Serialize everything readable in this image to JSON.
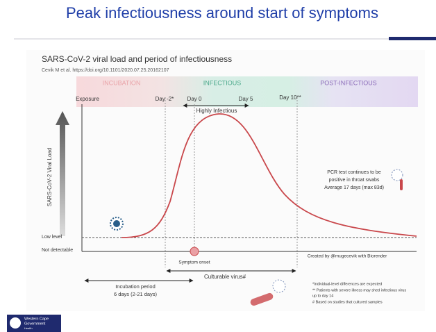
{
  "slide": {
    "title": "Peak infectiousness around start of symptoms"
  },
  "figure": {
    "title": "SARS-CoV-2 viral load and period of infectiousness",
    "citation": "Cevik M et al. https://doi.org/10.1101/2020.07.25.20162107",
    "phases": [
      "INCUBATION",
      "INFECTIOUS",
      "POST-INFECTIOUS"
    ],
    "timeline": [
      "Exposure",
      "Day -2*",
      "Day 0",
      "Day 5",
      "Day 10**"
    ],
    "highly_infectious": "Highly Infectious",
    "y_axis_label": "SARS-CoV-2 Viral Load",
    "levels": [
      "Low level",
      "Not detectable"
    ],
    "pcr_note": [
      "PCR test continues to be",
      "positive in throat swabs",
      "Average 17 days (max 83d)"
    ],
    "symptom_onset": "Symptom onset",
    "credit": "Created by @mugecevik with Biorender",
    "culturable": "Culturable virus#",
    "incubation": [
      "Incubation period",
      "6 days (2-21 days)"
    ],
    "footnotes": [
      "*Individual-level differences are expected",
      "** Patients with severe illness may shed infectious virus",
      "up to day 14",
      "# Based on studies that cultured samples"
    ]
  },
  "logo": [
    "Western Cape",
    "Government",
    "Health"
  ]
}
